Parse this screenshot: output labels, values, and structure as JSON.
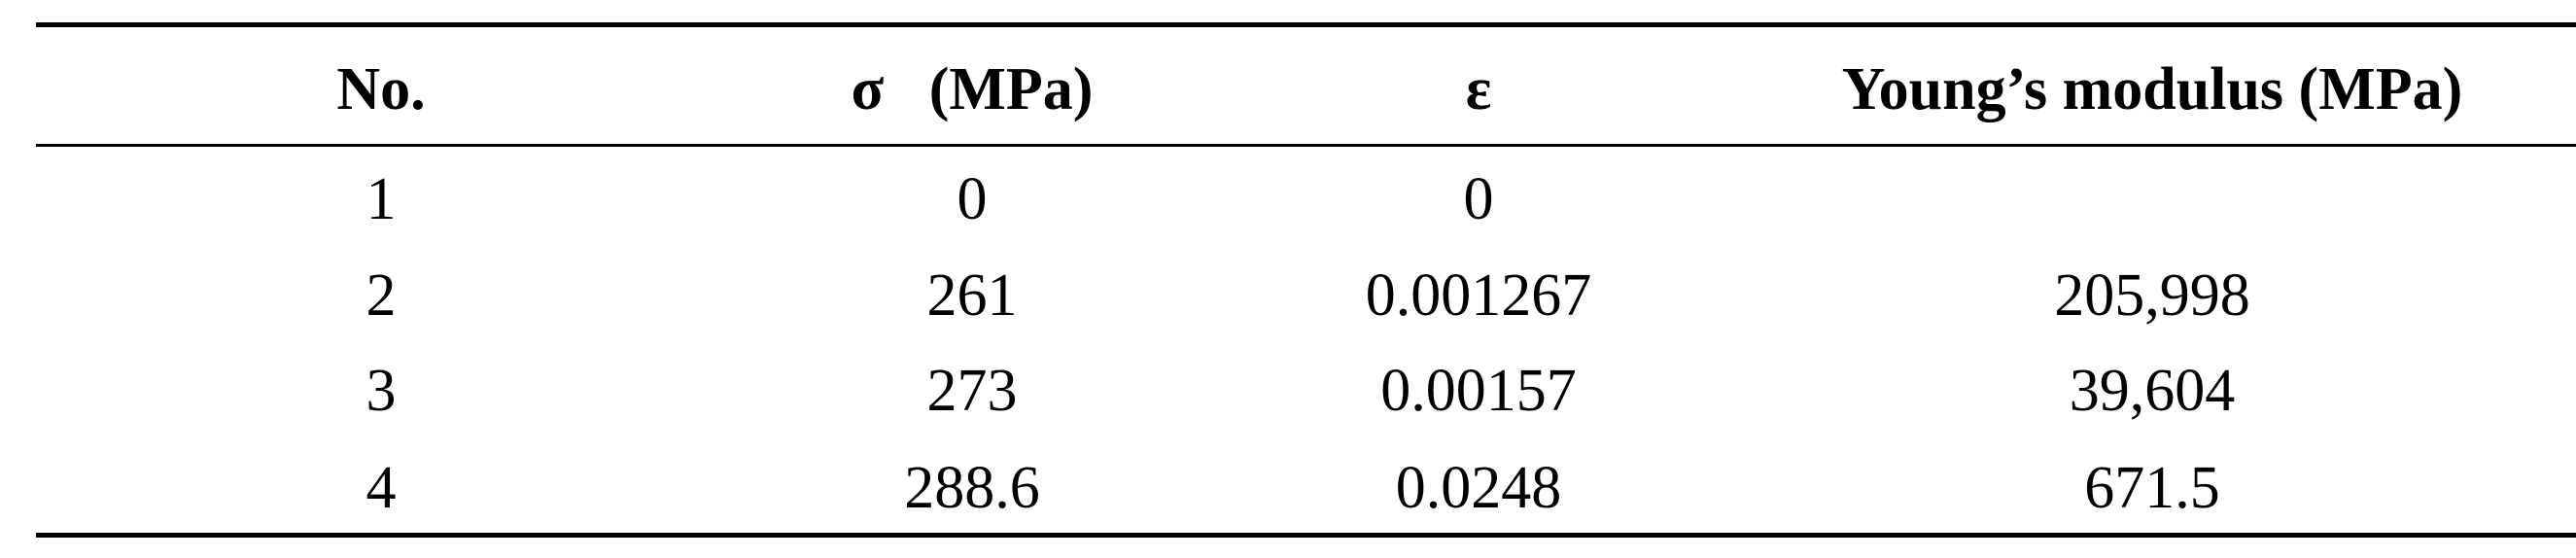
{
  "table": {
    "headers": [
      "No.",
      "σ   (MPa)",
      "ε",
      "Young’s modulus (MPa)"
    ],
    "rows": [
      [
        "1",
        "0",
        "0",
        null
      ],
      [
        "2",
        "261",
        "0.001267",
        "205,998"
      ],
      [
        "3",
        "273",
        "0.00157",
        "39,604"
      ],
      [
        "4",
        "288.6",
        "0.0248",
        "671.5"
      ]
    ]
  }
}
